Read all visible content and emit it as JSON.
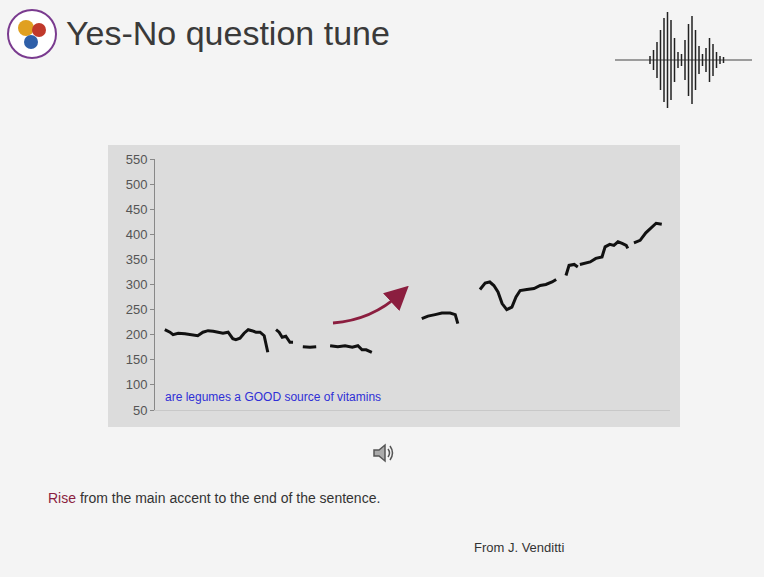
{
  "title": "Yes-No question tune",
  "chart_data": {
    "type": "line",
    "x": [
      1.9,
      2.9,
      3.5,
      4.5,
      5.8,
      7.2,
      8.3,
      9.3,
      10.3,
      11.3,
      12.2,
      13.2,
      14.2,
      15.1,
      15.7,
      16.5,
      17.3,
      18.1,
      18.8,
      19.6,
      20.4,
      21.2,
      21.9,
      22.7,
      23.5,
      24.1,
      24.7,
      25.4,
      26.2,
      26.8,
      27.7,
      28.7,
      30.1,
      31.3,
      32.6,
      34.0,
      35.5,
      36.9,
      38.3,
      39.4,
      40.2,
      41.0,
      42.1,
      47.0,
      51.8,
      53.0,
      54.4,
      55.7,
      57.3,
      58.3,
      58.8,
      61.0,
      63.1,
      64.1,
      65.0,
      65.8,
      66.6,
      67.4,
      68.3,
      69.3,
      70.1,
      70.9,
      72.2,
      73.6,
      74.8,
      75.9,
      77.1,
      77.9,
      78.8,
      79.8,
      80.4,
      81.4,
      82.1,
      82.3,
      82.5,
      84.5,
      85.6,
      86.8,
      87.4,
      88.3,
      89.1,
      89.9,
      90.7,
      91.5,
      91.8,
      92.4,
      93.0,
      94.2,
      95.3,
      96.5,
      97.3,
      98.4
    ],
    "values": [
      210,
      205,
      200,
      203,
      202,
      200,
      198,
      205,
      208,
      207,
      205,
      203,
      205,
      192,
      190,
      193,
      203,
      210,
      208,
      205,
      205,
      198,
      165,
      null,
      210,
      205,
      195,
      197,
      185,
      185,
      null,
      176,
      175,
      176,
      null,
      178,
      176,
      178,
      175,
      178,
      170,
      170,
      165,
      null,
      232,
      237,
      240,
      243,
      243,
      240,
      222,
      null,
      290,
      303,
      305,
      298,
      285,
      262,
      250,
      255,
      275,
      288,
      290,
      292,
      298,
      300,
      305,
      310,
      null,
      318,
      338,
      340,
      335,
      null,
      340,
      345,
      352,
      355,
      375,
      380,
      378,
      385,
      382,
      378,
      372,
      null,
      383,
      388,
      403,
      415,
      422,
      420
    ],
    "color": "#111111",
    "xlim": [
      0,
      100
    ],
    "ylim": [
      50,
      550
    ],
    "yticks": [
      50,
      100,
      150,
      200,
      250,
      300,
      350,
      400,
      450,
      500,
      550
    ],
    "tick_labels": "y",
    "grid": false,
    "annotations": [
      {
        "text": "are legumes a GOOD source of vitamins",
        "color": "#2f2fd6"
      }
    ]
  },
  "caption": [
    {
      "text": "Rise",
      "color": "#8b1e3f"
    },
    {
      "text": "from the main accent to the end of the sentence."
    }
  ],
  "source": "From J. Venditti"
}
